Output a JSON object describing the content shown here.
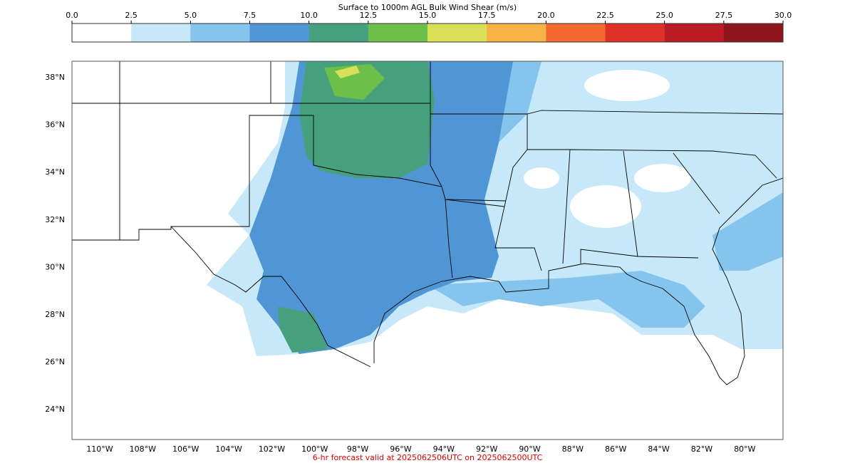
{
  "colorbar": {
    "title": "Surface to 1000m AGL Bulk Wind Shear (m/s)",
    "ticks": [
      {
        "value": 0,
        "label": "0.0"
      },
      2.5,
      {
        "value": 5,
        "label": "5.0"
      },
      7.5,
      {
        "value": 10,
        "label": "10.0"
      },
      12.5,
      {
        "value": 15,
        "label": "15.0"
      },
      17.5,
      {
        "value": 20,
        "label": "20.0"
      },
      22.5,
      {
        "value": 25,
        "label": "25.0"
      },
      27.5,
      {
        "value": 30,
        "label": "30.0"
      }
    ],
    "colors": [
      "#ffffff",
      "#c6e8f8",
      "#85c4ec",
      "#5196d4",
      "#46a07e",
      "#6cc04a",
      "#d9e058",
      "#f7b244",
      "#f26a2e",
      "#de3127",
      "#bb1b24",
      "#8e1519"
    ]
  },
  "map": {
    "lat_labels": [
      "38°N",
      "36°N",
      "34°N",
      "32°N",
      "30°N",
      "28°N",
      "26°N",
      "24°N"
    ],
    "lon_labels": [
      "110°W",
      "108°W",
      "106°W",
      "104°W",
      "102°W",
      "100°W",
      "98°W",
      "96°W",
      "94°W",
      "92°W",
      "90°W",
      "88°W",
      "86°W",
      "84°W",
      "82°W",
      "80°W"
    ]
  },
  "footer": "6-hr forecast valid at 2025062506UTC on 2025062500UTC"
}
